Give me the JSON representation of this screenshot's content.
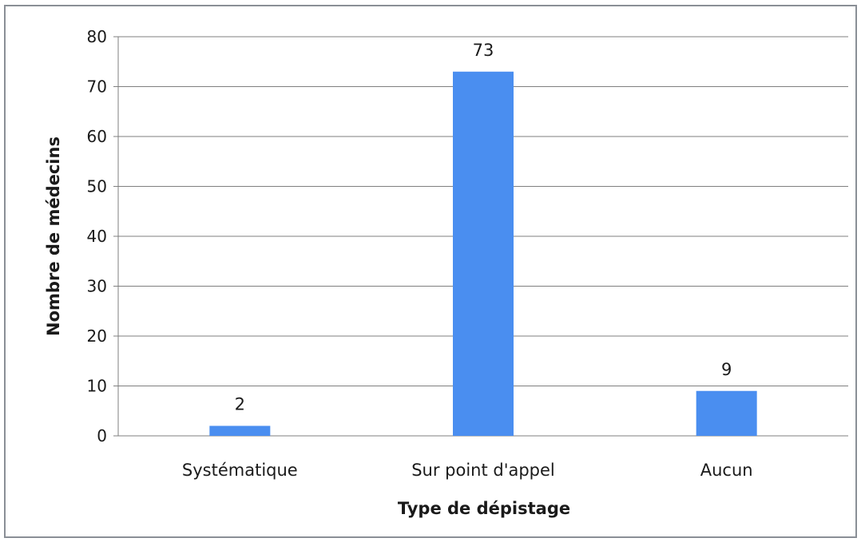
{
  "chart_data": {
    "type": "bar",
    "title": "",
    "xlabel": "Type de dépistage",
    "ylabel": "Nombre de médecins",
    "categories": [
      "Systématique",
      "Sur point d'appel",
      "Aucun"
    ],
    "values": [
      2,
      73,
      9
    ],
    "data_labels": [
      "2",
      "73",
      "9"
    ],
    "ylim": [
      0,
      80
    ],
    "yticks": [
      0,
      10,
      20,
      30,
      40,
      50,
      60,
      70,
      80
    ],
    "grid": true,
    "legend": "none",
    "bar_color": "#4a8ef0"
  }
}
